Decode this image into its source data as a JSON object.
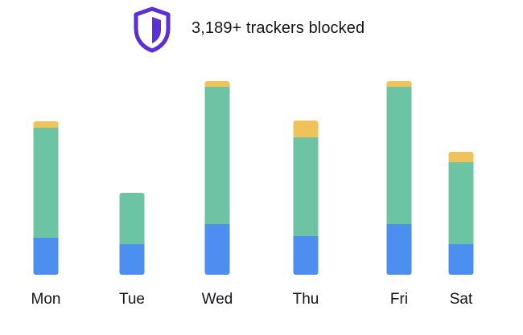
{
  "header": {
    "title": "3,189+ trackers blocked",
    "icon": "shield-icon"
  },
  "colors": {
    "shield_stroke": "#5b2fd6",
    "shield_fill": "#5b2fd6",
    "shield_bg": "#ffffff",
    "series_1": "#4c8ff0",
    "series_2": "#6dc4a4",
    "series_3": "#f0c25a",
    "text": "#15141a"
  },
  "chart_data": {
    "type": "bar",
    "stacked": true,
    "categories": [
      "Mon",
      "Tue",
      "Wed",
      "Thu",
      "Fri",
      "Sat"
    ],
    "series": [
      {
        "values": [
          46,
          38,
          63,
          48,
          63,
          38
        ]
      },
      {
        "values": [
          137,
          64,
          171,
          123,
          171,
          102
        ]
      },
      {
        "values": [
          8,
          0,
          7,
          21,
          7,
          13
        ]
      }
    ],
    "ylim": [
      0,
      250
    ],
    "grid": false
  }
}
